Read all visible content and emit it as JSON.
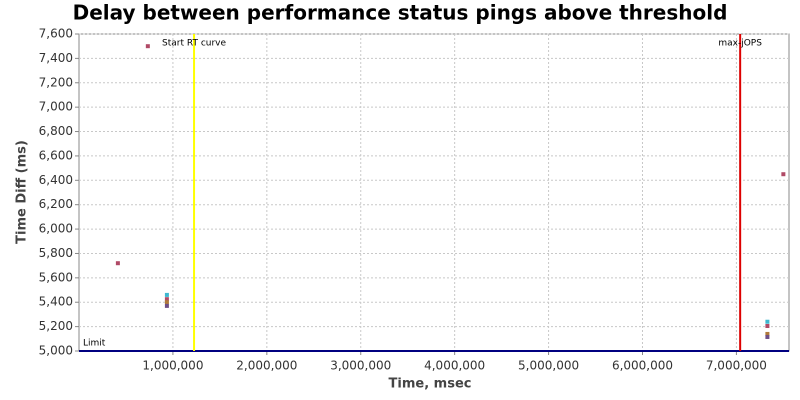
{
  "chart_data": {
    "type": "scatter",
    "title": "Delay between performance status pings above threshold",
    "x_label": "Time, msec",
    "y_label": "Time Diff (ms)",
    "xlim": [
      0,
      7560000
    ],
    "ylim": [
      5000,
      7600
    ],
    "xticks": [
      {
        "value": 1000000,
        "label": "1,000,000"
      },
      {
        "value": 2000000,
        "label": "2,000,000"
      },
      {
        "value": 3000000,
        "label": "3,000,000"
      },
      {
        "value": 4000000,
        "label": "4,000,000"
      },
      {
        "value": 5000000,
        "label": "5,000,000"
      },
      {
        "value": 6000000,
        "label": "6,000,000"
      },
      {
        "value": 7000000,
        "label": "7,000,000"
      }
    ],
    "yticks": [
      {
        "value": 5000,
        "label": "5,000"
      },
      {
        "value": 5200,
        "label": "5,200"
      },
      {
        "value": 5400,
        "label": "5,400"
      },
      {
        "value": 5600,
        "label": "5,600"
      },
      {
        "value": 5800,
        "label": "5,800"
      },
      {
        "value": 6000,
        "label": "6,000"
      },
      {
        "value": 6200,
        "label": "6,200"
      },
      {
        "value": 6400,
        "label": "6,400"
      },
      {
        "value": 6600,
        "label": "6,600"
      },
      {
        "value": 6800,
        "label": "6,800"
      },
      {
        "value": 7000,
        "label": "7,000"
      },
      {
        "value": 7200,
        "label": "7,200"
      },
      {
        "value": 7400,
        "label": "7,400"
      },
      {
        "value": 7600,
        "label": "7,600"
      }
    ],
    "grid": true,
    "series": [
      {
        "color": "#b04a66",
        "x": [
          414000,
          733000,
          936000,
          7330000,
          7500000
        ],
        "values": [
          5720,
          7500,
          5425,
          5205,
          6450
        ]
      },
      {
        "color": "#3fb8d0",
        "x": [
          936000,
          7330000
        ],
        "values": [
          5460,
          5240
        ]
      },
      {
        "color": "#b07a3a",
        "x": [
          936000,
          7330000
        ],
        "values": [
          5400,
          5140
        ]
      },
      {
        "color": "#6e4f86",
        "x": [
          936000,
          7330000
        ],
        "values": [
          5370,
          5115
        ]
      }
    ],
    "x_markers": [
      {
        "label": "Start RT curve",
        "value": 1225000,
        "color": "#ffff00"
      },
      {
        "label": "max-jOPS",
        "value": 7040000,
        "color": "#dd0000"
      }
    ],
    "y_markers": [
      {
        "label": "Limit",
        "value": 5000,
        "color": "#000080"
      }
    ]
  }
}
